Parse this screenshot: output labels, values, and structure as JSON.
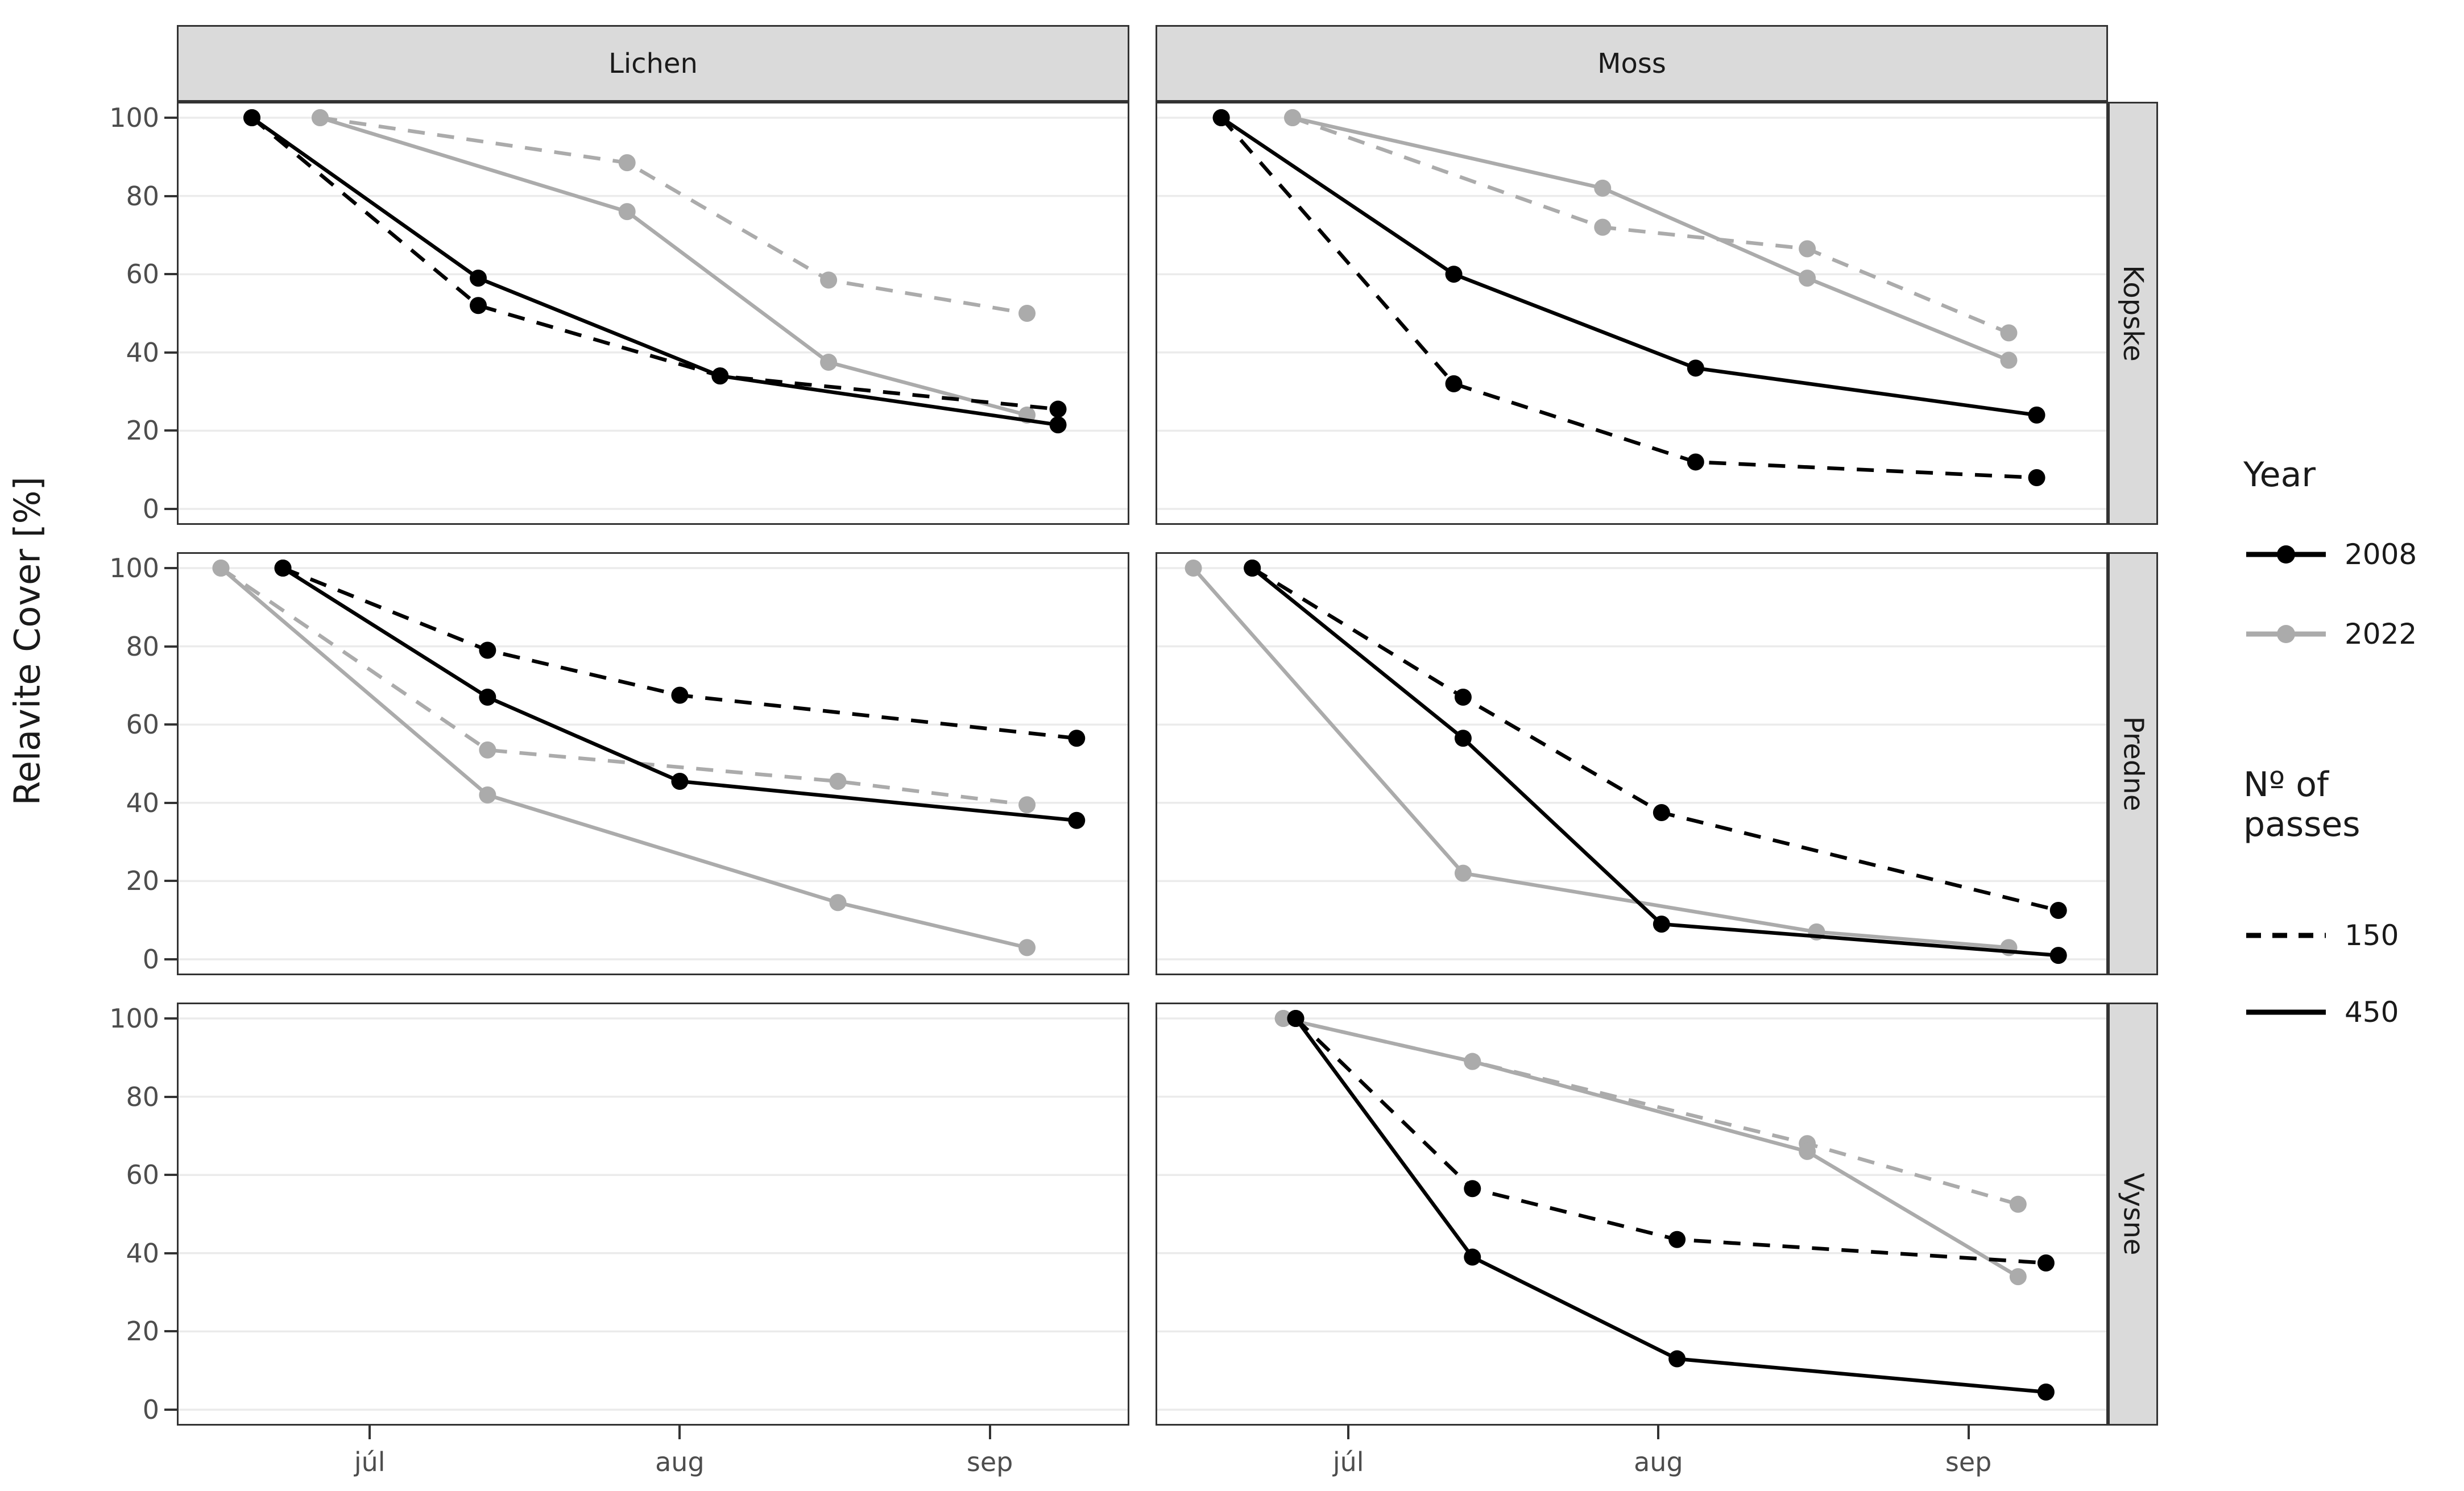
{
  "chart_data": {
    "type": "line",
    "title": "",
    "ylabel": "Relavite Cover [%]",
    "xlabel": "",
    "ylim": [
      0,
      100
    ],
    "grid": "horizontal-major-only",
    "legend_position": "right",
    "y_tick_labels": [
      "100",
      "80",
      "60",
      "40",
      "20",
      "0"
    ],
    "x_tick_labels": [
      "júl",
      "aug",
      "sep"
    ],
    "col_facets": [
      "Lichen",
      "Moss"
    ],
    "row_facets": [
      "Kopske",
      "Predne",
      "Vysne"
    ],
    "colors": {
      "year2008": "#000000",
      "year2022": "#ABABAB",
      "strip_bg": "#DADADA",
      "panel_border": "#333333",
      "gridline": "#EBEBEB",
      "tick_text": "#4D4D4D"
    },
    "x_axis_note": "x in month units: 0 = júl, 1 = aug, 2 = sep",
    "panels": [
      {
        "col": "Lichen",
        "row": "Kopske",
        "series": [
          {
            "year": "2022",
            "passes": "150",
            "points": [
              [
                -0.16,
                100
              ],
              [
                0.83,
                88.5
              ],
              [
                1.48,
                58.5
              ],
              [
                2.12,
                50
              ]
            ]
          },
          {
            "year": "2022",
            "passes": "450",
            "points": [
              [
                -0.16,
                100
              ],
              [
                0.83,
                76
              ],
              [
                1.48,
                37.5
              ],
              [
                2.12,
                24
              ]
            ]
          },
          {
            "year": "2008",
            "passes": "150",
            "points": [
              [
                -0.38,
                100
              ],
              [
                0.35,
                52
              ],
              [
                1.13,
                34
              ],
              [
                2.22,
                25.5
              ]
            ]
          },
          {
            "year": "2008",
            "passes": "450",
            "points": [
              [
                -0.38,
                100
              ],
              [
                0.35,
                59
              ],
              [
                1.13,
                34
              ],
              [
                2.22,
                21.5
              ]
            ]
          }
        ]
      },
      {
        "col": "Moss",
        "row": "Kopske",
        "series": [
          {
            "year": "2022",
            "passes": "150",
            "points": [
              [
                -0.18,
                100
              ],
              [
                0.82,
                72
              ],
              [
                1.48,
                66.5
              ],
              [
                2.13,
                45
              ]
            ]
          },
          {
            "year": "2022",
            "passes": "450",
            "points": [
              [
                -0.18,
                100
              ],
              [
                0.82,
                82
              ],
              [
                1.48,
                59
              ],
              [
                2.13,
                38
              ]
            ]
          },
          {
            "year": "2008",
            "passes": "150",
            "points": [
              [
                -0.41,
                100
              ],
              [
                0.34,
                32
              ],
              [
                1.12,
                12
              ],
              [
                2.22,
                8
              ]
            ]
          },
          {
            "year": "2008",
            "passes": "450",
            "points": [
              [
                -0.41,
                100
              ],
              [
                0.34,
                60
              ],
              [
                1.12,
                36
              ],
              [
                2.22,
                24
              ]
            ]
          }
        ]
      },
      {
        "col": "Lichen",
        "row": "Predne",
        "series": [
          {
            "year": "2022",
            "passes": "150",
            "points": [
              [
                -0.48,
                100
              ],
              [
                0.38,
                53.5
              ],
              [
                1.51,
                45.5
              ],
              [
                2.12,
                39.5
              ]
            ]
          },
          {
            "year": "2022",
            "passes": "450",
            "points": [
              [
                -0.48,
                100
              ],
              [
                0.38,
                42
              ],
              [
                1.51,
                14.5
              ],
              [
                2.12,
                3
              ]
            ]
          },
          {
            "year": "2008",
            "passes": "150",
            "points": [
              [
                -0.28,
                100
              ],
              [
                0.38,
                79
              ],
              [
                1.0,
                67.5
              ],
              [
                2.28,
                56.5
              ]
            ]
          },
          {
            "year": "2008",
            "passes": "450",
            "points": [
              [
                -0.28,
                100
              ],
              [
                0.38,
                67
              ],
              [
                1.0,
                45.5
              ],
              [
                2.28,
                35.5
              ]
            ]
          }
        ]
      },
      {
        "col": "Moss",
        "row": "Predne",
        "series": [
          {
            "year": "2022",
            "passes": "450",
            "points": [
              [
                -0.5,
                100
              ],
              [
                0.37,
                22
              ],
              [
                1.51,
                7
              ],
              [
                2.13,
                3
              ]
            ]
          },
          {
            "year": "2008",
            "passes": "150",
            "points": [
              [
                -0.31,
                100
              ],
              [
                0.37,
                67
              ],
              [
                1.01,
                37.5
              ],
              [
                2.29,
                12.5
              ]
            ]
          },
          {
            "year": "2008",
            "passes": "450",
            "points": [
              [
                -0.31,
                100
              ],
              [
                0.37,
                56.5
              ],
              [
                1.01,
                9
              ],
              [
                2.29,
                1
              ]
            ]
          }
        ]
      },
      {
        "col": "Lichen",
        "row": "Vysne",
        "series": []
      },
      {
        "col": "Moss",
        "row": "Vysne",
        "series": [
          {
            "year": "2022",
            "passes": "150",
            "points": [
              [
                -0.21,
                100
              ],
              [
                0.4,
                89
              ],
              [
                1.48,
                68
              ],
              [
                2.16,
                52.5
              ]
            ]
          },
          {
            "year": "2022",
            "passes": "450",
            "points": [
              [
                -0.21,
                100
              ],
              [
                0.4,
                89
              ],
              [
                1.48,
                66
              ],
              [
                2.16,
                34
              ]
            ]
          },
          {
            "year": "2008",
            "passes": "150",
            "points": [
              [
                -0.17,
                100
              ],
              [
                0.4,
                56.5
              ],
              [
                1.06,
                43.5
              ],
              [
                2.25,
                37.5
              ]
            ]
          },
          {
            "year": "2008",
            "passes": "450",
            "points": [
              [
                -0.17,
                100
              ],
              [
                0.4,
                39
              ],
              [
                1.06,
                13
              ],
              [
                2.25,
                4.5
              ]
            ]
          }
        ]
      }
    ],
    "legend": {
      "year_title": "Year",
      "year_items": [
        {
          "label": "2008",
          "color": "#000000"
        },
        {
          "label": "2022",
          "color": "#ABABAB"
        }
      ],
      "passes_title": "Nº of passes",
      "passes_items": [
        {
          "label": "150",
          "style": "dashed"
        },
        {
          "label": "450",
          "style": "solid"
        }
      ]
    }
  }
}
